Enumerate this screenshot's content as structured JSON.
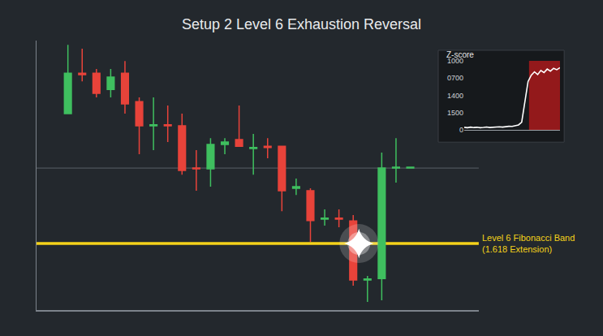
{
  "chart_data": {
    "type": "candlestick",
    "title": "Setup 2 Level 6 Exhaustion Reversal",
    "x": [
      1,
      2,
      3,
      4,
      5,
      6,
      7,
      8,
      9,
      10,
      11,
      12,
      13,
      14,
      15,
      16,
      17,
      18,
      19,
      20,
      21,
      22,
      23,
      24,
      25
    ],
    "open": [
      74.7,
      90.1,
      90.1,
      83.9,
      90.1,
      79.3,
      70.1,
      70.5,
      70.1,
      54.0,
      53.7,
      63.0,
      64.8,
      61.4,
      62.3,
      62.3,
      46.3,
      45.4,
      34.6,
      35.0,
      33.9,
      11.4,
      12.0,
      54.0,
      54.0
    ],
    "high": [
      100.9,
      99.4,
      91.7,
      91.7,
      94.7,
      80.9,
      80.9,
      77.8,
      74.7,
      60.8,
      65.4,
      65.4,
      77.8,
      67.0,
      65.4,
      62.3,
      50.0,
      46.3,
      38.3,
      38.3,
      36.1,
      13.0,
      59.9,
      65.4,
      54.3
    ],
    "low": [
      74.7,
      87.0,
      80.9,
      80.9,
      74.7,
      59.3,
      60.8,
      63.9,
      51.5,
      45.4,
      46.9,
      59.3,
      62.3,
      51.5,
      57.7,
      37.6,
      43.8,
      25.9,
      32.1,
      31.5,
      9.3,
      3.1,
      3.7,
      48.5,
      54.0
    ],
    "close": [
      90.1,
      89.5,
      82.4,
      88.6,
      78.4,
      70.1,
      70.5,
      70.1,
      53.1,
      53.7,
      63.0,
      63.9,
      62.3,
      61.8,
      61.8,
      45.4,
      46.9,
      34.0,
      35.0,
      34.6,
      11.4,
      11.8,
      54.0,
      54.3,
      54.3
    ],
    "colors": [
      "#3fbf5f",
      "#e8433a",
      "#e8433a",
      "#3fbf5f",
      "#e8433a",
      "#e8433a",
      "#3fbf5f",
      "#e8433a",
      "#e8433a",
      "#e8433a",
      "#3fbf5f",
      "#3fbf5f",
      "#e8433a",
      "#3fbf5f",
      "#e8433a",
      "#e8433a",
      "#3fbf5f",
      "#e8433a",
      "#3fbf5f",
      "#e8433a",
      "#e8433a",
      "#3fbf5f",
      "#3fbf5f",
      "#3fbf5f",
      "#3fbf5f"
    ],
    "xlim": [
      -1.2,
      29.8
    ],
    "ylim": [
      0,
      102.5
    ],
    "tick_labels": false,
    "grid": false,
    "reference_line": {
      "value": 54.0,
      "color": "#5a6168"
    },
    "level": {
      "value": 25.3,
      "label": [
        "Level 6 Fibonacci Band",
        "(1.618 Extension)"
      ],
      "color": "#f5d21a"
    },
    "signal": {
      "x": 21.4,
      "y": 25.3,
      "marker": "star"
    },
    "inset": {
      "type": "line",
      "title": "Z-score",
      "x": [
        0,
        1,
        2,
        3,
        4,
        5,
        6,
        7,
        8,
        9,
        10,
        11,
        12,
        13,
        14,
        15,
        16,
        17,
        18,
        19,
        20,
        21,
        22,
        23,
        24,
        25,
        26,
        27,
        28,
        29,
        30
      ],
      "values": [
        35,
        30,
        38,
        32,
        36,
        30,
        34,
        40,
        33,
        37,
        35,
        42,
        38,
        45,
        50,
        48,
        55,
        70,
        110,
        380,
        700,
        790,
        840,
        800,
        860,
        830,
        880,
        850,
        890,
        870,
        900
      ],
      "color": "#ffffff",
      "xlim": [
        0,
        30
      ],
      "ylim": [
        0,
        1000
      ],
      "yticks": [
        0,
        {
          "value": 250,
          "label": "1500"
        },
        {
          "value": 500,
          "label": "1400"
        },
        {
          "value": 750,
          "label": "0700"
        },
        1000
      ],
      "tick_labels": "y",
      "highlight": {
        "x": [
          20.3,
          30
        ],
        "color": "#b3191c"
      }
    }
  }
}
